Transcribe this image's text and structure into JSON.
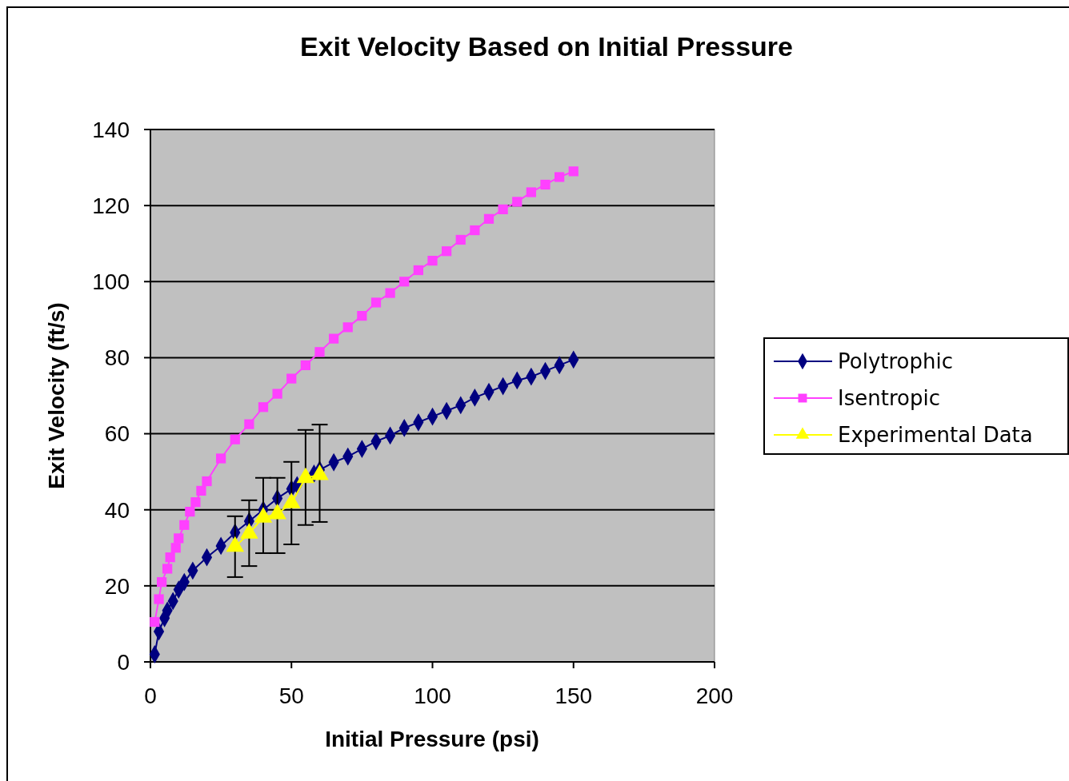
{
  "chart_data": {
    "type": "line",
    "title": "Exit Velocity Based on Initial Pressure",
    "xlabel": "Initial Pressure (psi)",
    "ylabel": "Exit Velocity (ft/s)",
    "xlim": [
      0,
      200
    ],
    "xticks": [
      0,
      50,
      100,
      150,
      200
    ],
    "ylim": [
      0,
      140
    ],
    "yticks": [
      0,
      20,
      40,
      60,
      80,
      100,
      120,
      140
    ],
    "grid": "y",
    "legend": "right",
    "series": [
      {
        "name": "Polytrophic",
        "color": "#000080",
        "marker": "diamond",
        "x": [
          1.5,
          3,
          5,
          6,
          8,
          10,
          12,
          15,
          20,
          25,
          30,
          35,
          40,
          45,
          50,
          52,
          58,
          60,
          65,
          70,
          75,
          80,
          85,
          90,
          95,
          100,
          105,
          110,
          115,
          120,
          125,
          130,
          135,
          140,
          145,
          150
        ],
        "values": [
          2,
          8,
          11.5,
          13.5,
          16,
          19,
          21,
          24,
          27.5,
          30.5,
          34,
          37,
          40,
          43,
          45.5,
          46.5,
          49.5,
          50.5,
          52.5,
          54,
          56,
          58,
          59.5,
          61.5,
          63,
          64.5,
          66,
          67.5,
          69.5,
          71,
          72.5,
          74,
          75,
          76.5,
          78,
          79.5
        ]
      },
      {
        "name": "Isentropic",
        "color": "#ff40ff",
        "marker": "square",
        "x": [
          1.5,
          3,
          4,
          6,
          7,
          9,
          10,
          12,
          14,
          16,
          18,
          20,
          25,
          30,
          35,
          40,
          45,
          50,
          55,
          60,
          65,
          70,
          75,
          80,
          85,
          90,
          95,
          100,
          105,
          110,
          115,
          120,
          125,
          130,
          135,
          140,
          145,
          150
        ],
        "values": [
          10.5,
          16.5,
          21,
          24.5,
          27.5,
          30,
          32.5,
          36,
          39.5,
          42,
          45,
          47.5,
          53.5,
          58.5,
          62.5,
          67,
          70.5,
          74.5,
          78,
          81.5,
          85,
          88,
          91,
          94.5,
          97,
          100,
          103,
          105.5,
          108,
          111,
          113.5,
          116.5,
          119,
          121,
          123.5,
          125.5,
          127.5,
          129
        ]
      },
      {
        "name": "Experimental Data",
        "color": "#ffff00",
        "marker": "triangle",
        "x": [
          30,
          35,
          40,
          45,
          50,
          55,
          60
        ],
        "values": [
          30.3,
          33.8,
          38,
          38.9,
          41.8,
          48.4,
          49.2
        ],
        "errors": [
          [
            22.3,
            38.3
          ],
          [
            25.2,
            42.5
          ],
          [
            28.6,
            48.4
          ],
          [
            28.6,
            48.4
          ],
          [
            30.9,
            52.6
          ],
          [
            36,
            61
          ],
          [
            36.8,
            62.4
          ]
        ]
      }
    ]
  }
}
